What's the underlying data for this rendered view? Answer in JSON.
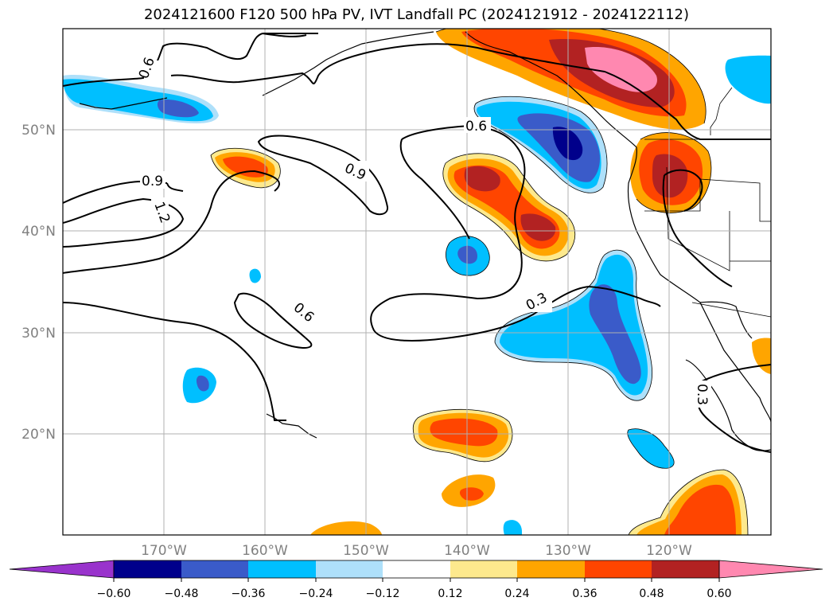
{
  "title": "2024121600 F120 500 hPa PV, IVT Landfall PC (2024121912 - 2024122112)",
  "lon_labels": [
    "170°W",
    "160°W",
    "150°W",
    "140°W",
    "130°W",
    "120°W"
  ],
  "lat_labels": [
    "50°N",
    "40°N",
    "30°N",
    "20°N"
  ],
  "contour_labels": [
    "0.6",
    "0.9",
    "1.2",
    "0.6",
    "0.9",
    "0.6",
    "0.3",
    "0.3"
  ],
  "colorbar": {
    "ticks": [
      "−0.60",
      "−0.48",
      "−0.36",
      "−0.24",
      "−0.12",
      "0.12",
      "0.24",
      "0.36",
      "0.48",
      "0.60"
    ],
    "colors": {
      "lt_neg060": "#9933cc",
      "neg060_neg048": "#00008b",
      "neg048_neg036": "#3a5bc9",
      "neg036_neg024": "#00bfff",
      "neg024_neg012": "#aee0fa",
      "neg012_012": "#ffffff",
      "p012_p024": "#fde98d",
      "p024_p036": "#ffa500",
      "p036_p048": "#ff4500",
      "p048_p060": "#b22222",
      "gt_p060": "#ff88b0"
    }
  },
  "map": {
    "extent_lon": [
      -180,
      -110
    ],
    "extent_lat": [
      10,
      60
    ],
    "gridlines": true,
    "fill_field": "IVT Landfall PC",
    "contour_field": "500 hPa PV"
  }
}
